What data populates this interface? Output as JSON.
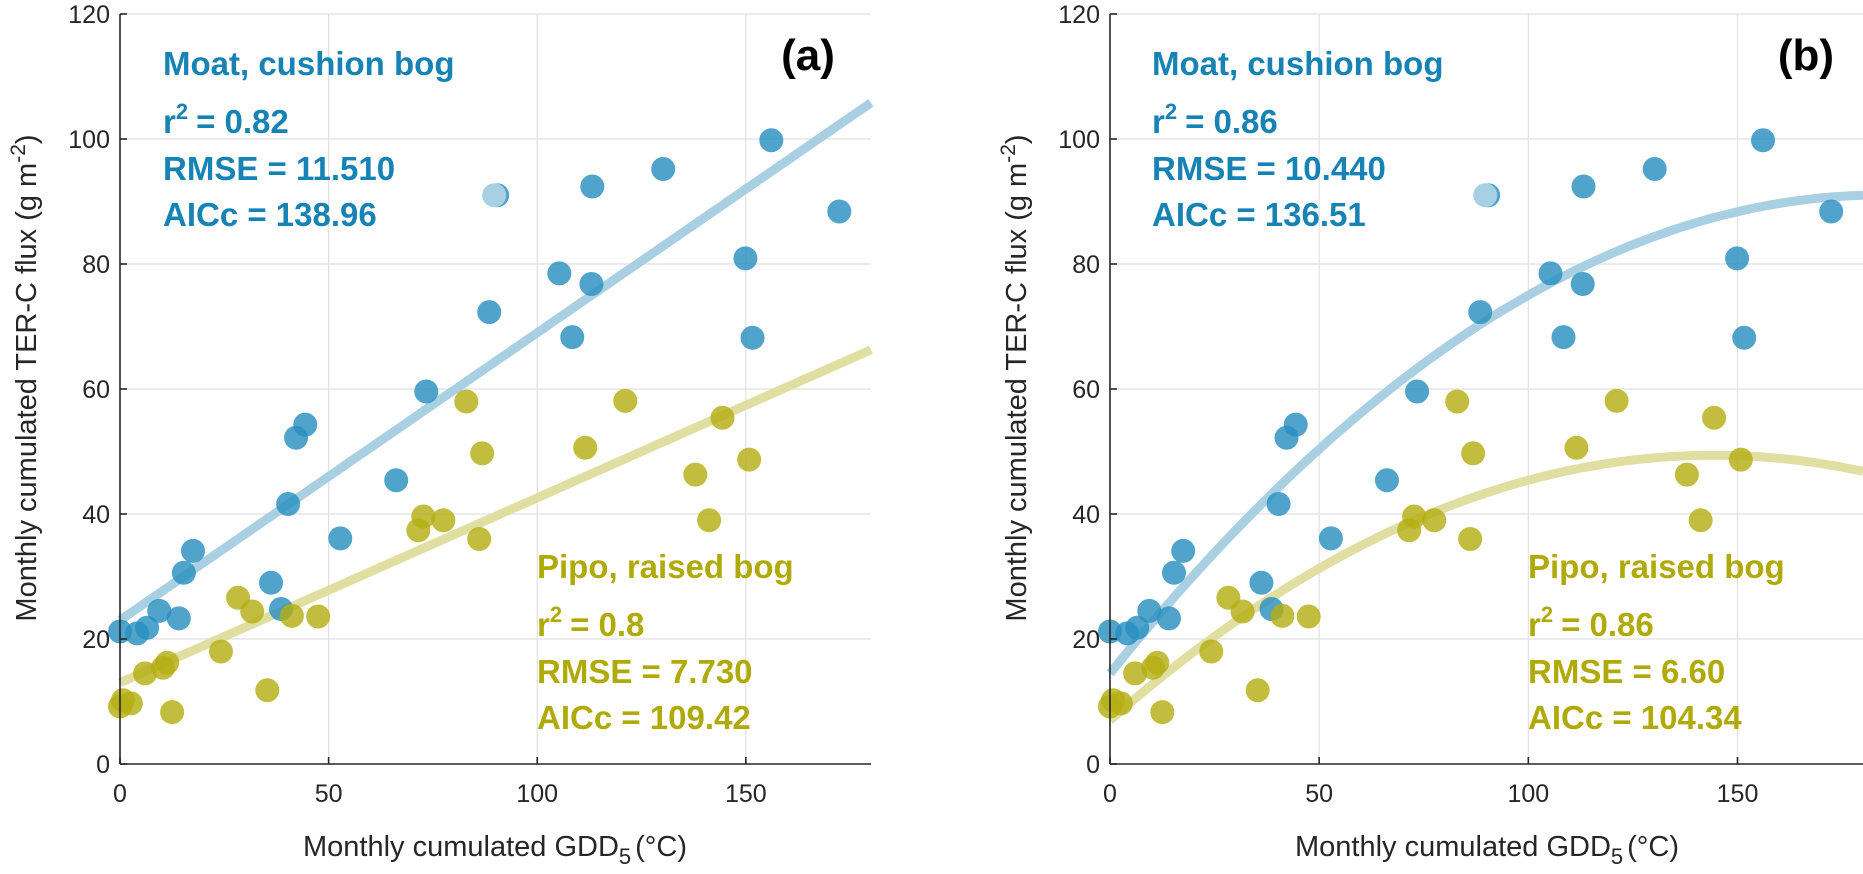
{
  "chart_data": [
    {
      "type": "scatter",
      "panel_label": "(a)",
      "fit": "linear",
      "xlabel": "Monthly cumulated GDD",
      "xlabel_subscript": "5",
      "xlabel_unit": "(°C)",
      "ylabel": "Monthly cumulated TER-C flux  (g m",
      "ylabel_superscript": "-2",
      "ylabel_close": ")",
      "xlim": [
        0,
        180
      ],
      "ylim": [
        0,
        120
      ],
      "xticks": [
        0,
        50,
        100,
        150
      ],
      "yticks": [
        0,
        20,
        40,
        60,
        80,
        100,
        120
      ],
      "grid": true,
      "series": [
        {
          "name": "Moat, cushion bog",
          "color": "#2a8fbf",
          "line_color": "#a3cde0",
          "text_color": "#1683b4",
          "stats": {
            "r2_label": "r",
            "r2_sup": "2",
            "r2": "= 0.82",
            "rmse": "RMSE = 11.510",
            "aicc": "AICc = 138.96"
          },
          "fit_coefs": [
            23,
            0.46,
            0
          ],
          "x": [
            0,
            4.1,
            6.5,
            9.4,
            14.1,
            15.3,
            17.5,
            36.2,
            38.6,
            40.3,
            42.2,
            44.4,
            52.8,
            66.2,
            73.4,
            88.5,
            90.4,
            105.3,
            108.4,
            113,
            113.2,
            130.2,
            149.9,
            151.6,
            156.1,
            172.4
          ],
          "y": [
            21.2,
            20.9,
            21.8,
            24.5,
            23.3,
            30.6,
            34.1,
            29,
            24.8,
            41.6,
            52.2,
            54.3,
            36.1,
            45.4,
            59.6,
            72.3,
            91,
            78.5,
            68.3,
            76.8,
            92.4,
            95.2,
            80.9,
            68.2,
            99.8,
            88.4
          ],
          "highlight_points": [
            {
              "x": 89.7,
              "y": 91,
              "color": "#a8d0e3"
            }
          ]
        },
        {
          "name": "Pipo, raised bog",
          "color": "#b5af14",
          "line_color": "#dfdc9c",
          "text_color": "#afaa07",
          "stats": {
            "r2_label": "r",
            "r2_sup": "2",
            "r2": "= 0.8",
            "rmse": "RMSE = 7.730",
            "aicc": "AICc = 109.42"
          },
          "fit_coefs": [
            13,
            0.296,
            0
          ],
          "x": [
            0,
            0.7,
            2.6,
            6,
            10.3,
            11.3,
            12.5,
            24.2,
            28.3,
            31.7,
            35.3,
            41.2,
            47.5,
            71.5,
            72.7,
            77.5,
            83,
            86.1,
            86.8,
            111.5,
            121.1,
            137.9,
            141.2,
            144.4,
            150.8
          ],
          "y": [
            9.2,
            10.2,
            9.7,
            14.5,
            15.4,
            16.2,
            8.3,
            18,
            26.6,
            24.4,
            11.8,
            23.7,
            23.6,
            37.4,
            39.6,
            39,
            58,
            36,
            49.7,
            50.6,
            58.1,
            46.3,
            39,
            55.4,
            48.7
          ],
          "highlight_points": []
        }
      ]
    },
    {
      "type": "scatter",
      "panel_label": "(b)",
      "fit": "quadratic",
      "xlabel": "Monthly cumulated GDD",
      "xlabel_subscript": "5",
      "xlabel_unit": "(°C)",
      "ylabel": "Monthly cumulated TER-C flux  (g m",
      "ylabel_superscript": "-2",
      "ylabel_close": ")",
      "xlim": [
        0,
        180
      ],
      "ylim": [
        0,
        120
      ],
      "xticks": [
        0,
        50,
        100,
        150
      ],
      "yticks": [
        0,
        20,
        40,
        60,
        80,
        100,
        120
      ],
      "grid": true,
      "series": [
        {
          "name": "Moat, cushion bog",
          "color": "#2a8fbf",
          "line_color": "#a3cde0",
          "text_color": "#1683b4",
          "stats": {
            "r2_label": "r",
            "r2_sup": "2",
            "r2": "= 0.86",
            "rmse": "RMSE = 10.440",
            "aicc": "AICc = 136.51"
          },
          "fit_coefs": [
            14.5,
            0.83,
            -0.00225
          ],
          "x": [
            0,
            4.1,
            6.5,
            9.4,
            14.1,
            15.3,
            17.5,
            36.2,
            38.6,
            40.3,
            42.2,
            44.4,
            52.8,
            66.2,
            73.4,
            88.5,
            90.4,
            105.3,
            108.4,
            113,
            113.2,
            130.2,
            149.9,
            151.6,
            156.1,
            172.4
          ],
          "y": [
            21.2,
            20.9,
            21.8,
            24.5,
            23.3,
            30.6,
            34.1,
            29,
            24.8,
            41.6,
            52.2,
            54.3,
            36.1,
            45.4,
            59.6,
            72.3,
            91,
            78.5,
            68.3,
            76.8,
            92.4,
            95.2,
            80.9,
            68.2,
            99.8,
            88.4
          ],
          "highlight_points": [
            {
              "x": 89.7,
              "y": 91,
              "color": "#a8d0e3"
            }
          ]
        },
        {
          "name": "Pipo, raised bog",
          "color": "#b5af14",
          "line_color": "#dfdc9c",
          "text_color": "#afaa07",
          "stats": {
            "r2_label": "r",
            "r2_sup": "2",
            "r2": "= 0.86",
            "rmse": "RMSE = 6.60",
            "aicc": "AICc = 104.34"
          },
          "fit_coefs": [
            7,
            0.5875,
            -0.002035
          ],
          "x": [
            0,
            0.7,
            2.6,
            6,
            10.3,
            11.3,
            12.5,
            24.2,
            28.3,
            31.7,
            35.3,
            41.2,
            47.5,
            71.5,
            72.7,
            77.5,
            83,
            86.1,
            86.8,
            111.5,
            121.1,
            137.9,
            141.2,
            144.4,
            150.8
          ],
          "y": [
            9.2,
            10.2,
            9.7,
            14.5,
            15.4,
            16.2,
            8.3,
            18,
            26.6,
            24.4,
            11.8,
            23.7,
            23.6,
            37.4,
            39.6,
            39,
            58,
            36,
            49.7,
            50.6,
            58.1,
            46.3,
            39,
            55.4,
            48.7
          ],
          "highlight_points": []
        }
      ]
    }
  ]
}
